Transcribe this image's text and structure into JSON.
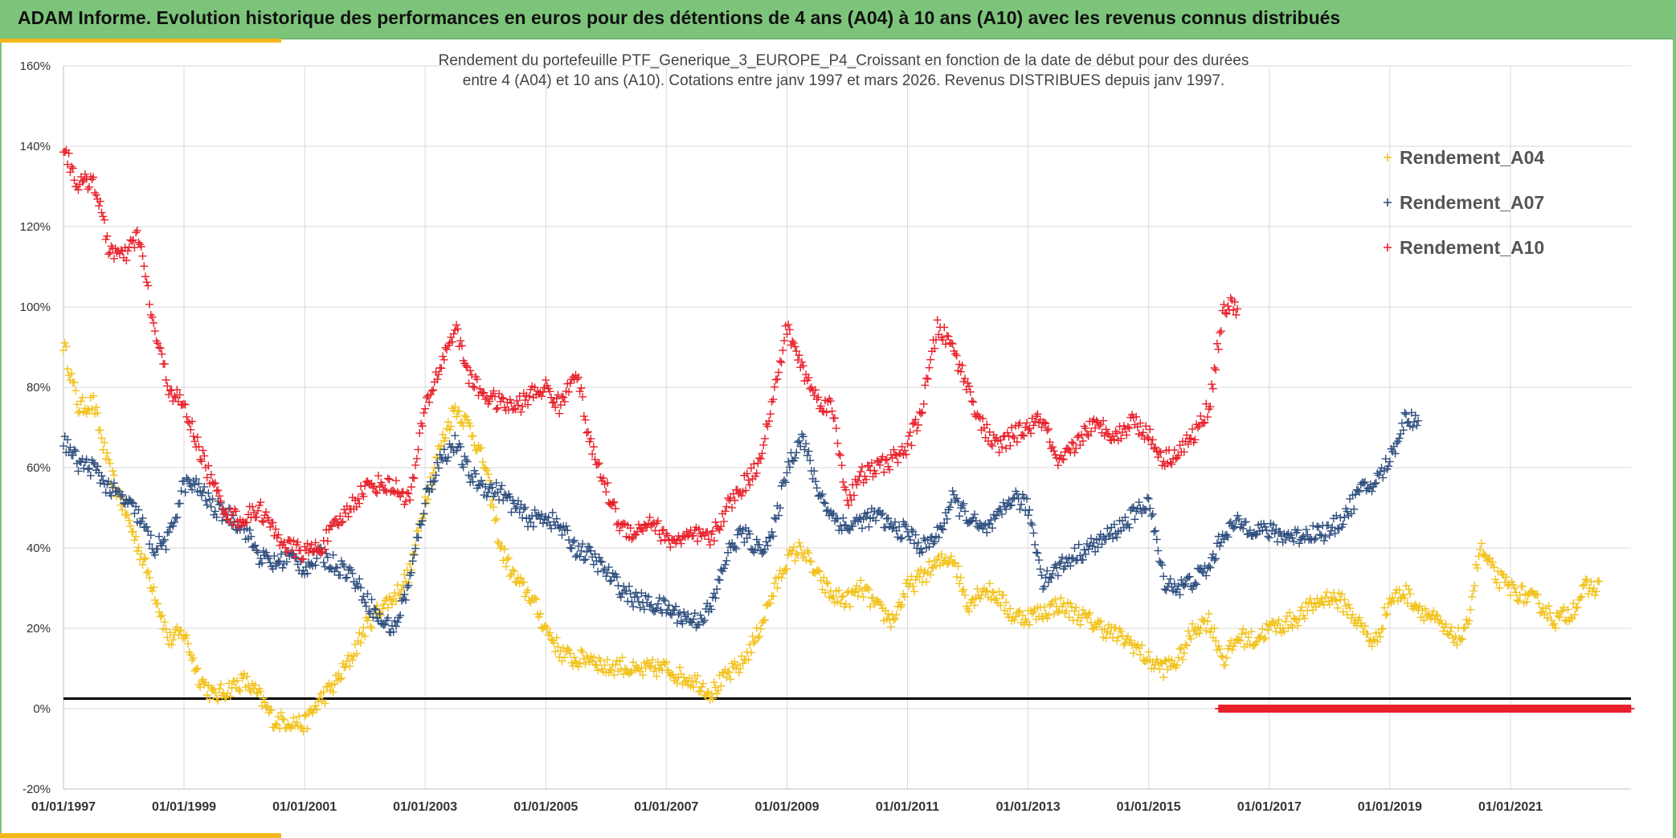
{
  "header": {
    "title": "ADAM Informe. Evolution historique des performances en euros pour des détentions de 4 ans (A04) à 10 ans (A10) avec les revenus connus distribués"
  },
  "colors": {
    "banner": "#7cc47a",
    "accent": "#f3b71a",
    "A04": "#f2c21b",
    "A07": "#2e4e7e",
    "A10": "#e8202a",
    "baseline": "#000000",
    "grid": "#d9d9d9"
  },
  "chart_data": {
    "type": "scatter",
    "title_lines": [
      "Rendement du portefeuille PTF_Generique_3_EUROPE_P4_Croissant en fonction de la date de début pour des durées",
      "entre 4 (A04) et 10 ans (A10). Cotations entre janv 1997 et mars 2026. Revenus DISTRIBUES depuis janv 1997."
    ],
    "x_type": "date",
    "xlim": [
      "1997-01-01",
      "2023-01-01"
    ],
    "x_ticks": [
      "01/01/1997",
      "01/01/1999",
      "01/01/2001",
      "01/01/2003",
      "01/01/2005",
      "01/01/2007",
      "01/01/2009",
      "01/01/2011",
      "01/01/2013",
      "01/01/2015",
      "01/01/2017",
      "01/01/2019",
      "01/01/2021"
    ],
    "ylim": [
      -20,
      160
    ],
    "y_ticks": [
      "-20%",
      "0%",
      "20%",
      "40%",
      "60%",
      "80%",
      "100%",
      "120%",
      "140%",
      "160%"
    ],
    "grid": true,
    "legend_position": "top-right",
    "marker": "plus",
    "baseline_y": 2.5,
    "series": [
      {
        "name": "Rendement_A04",
        "color": "#f2c21b",
        "x": [
          "1997-01-01",
          "1997-04-01",
          "1997-07-01",
          "1997-10-01",
          "1998-01-01",
          "1998-04-01",
          "1998-07-01",
          "1998-10-01",
          "1999-01-01",
          "1999-04-01",
          "1999-07-01",
          "1999-10-01",
          "2000-01-01",
          "2000-04-01",
          "2000-07-01",
          "2000-10-01",
          "2001-01-01",
          "2001-04-01",
          "2001-07-01",
          "2001-10-01",
          "2002-01-01",
          "2002-04-01",
          "2002-07-01",
          "2002-10-01",
          "2003-01-01",
          "2003-04-01",
          "2003-07-01",
          "2003-10-01",
          "2004-01-01",
          "2004-04-01",
          "2004-07-01",
          "2004-10-01",
          "2005-01-01",
          "2005-04-01",
          "2005-07-01",
          "2005-10-01",
          "2006-01-01",
          "2006-04-01",
          "2006-07-01",
          "2006-10-01",
          "2007-01-01",
          "2007-04-01",
          "2007-07-01",
          "2007-10-01",
          "2008-01-01",
          "2008-04-01",
          "2008-07-01",
          "2008-10-01",
          "2009-01-01",
          "2009-04-01",
          "2009-07-01",
          "2009-10-01",
          "2010-01-01",
          "2010-04-01",
          "2010-07-01",
          "2010-10-01",
          "2011-01-01",
          "2011-04-01",
          "2011-07-01",
          "2011-10-01",
          "2012-01-01",
          "2012-04-01",
          "2012-07-01",
          "2012-10-01",
          "2013-01-01",
          "2013-04-01",
          "2013-07-01",
          "2013-10-01",
          "2014-01-01",
          "2014-04-01",
          "2014-07-01",
          "2014-10-01",
          "2015-01-01",
          "2015-04-01",
          "2015-07-01",
          "2015-10-01",
          "2016-01-01",
          "2016-04-01",
          "2016-07-01",
          "2016-10-01",
          "2017-01-01",
          "2017-04-01",
          "2017-07-01",
          "2017-10-01",
          "2018-01-01",
          "2018-04-01",
          "2018-07-01",
          "2018-10-01",
          "2019-01-01",
          "2019-04-01",
          "2019-07-01",
          "2019-10-01",
          "2020-01-01",
          "2020-04-01",
          "2020-07-01",
          "2020-10-01",
          "2021-01-01",
          "2021-04-01",
          "2021-07-01",
          "2021-10-01",
          "2022-01-01",
          "2022-04-01"
        ],
        "y": [
          91,
          75,
          76,
          60,
          50,
          40,
          30,
          17,
          19,
          8,
          3,
          5,
          7,
          3,
          -3,
          -3,
          -4,
          2,
          6,
          12,
          20,
          25,
          28,
          34,
          52,
          65,
          75,
          70,
          60,
          40,
          32,
          28,
          20,
          14,
          12,
          13,
          10,
          11,
          9,
          10,
          10,
          8,
          7,
          4,
          8,
          11,
          18,
          28,
          37,
          40,
          33,
          28,
          27,
          30,
          25,
          22,
          30,
          33,
          36,
          38,
          26,
          30,
          28,
          23,
          23,
          24,
          26,
          24,
          22,
          20,
          18,
          16,
          12,
          10,
          12,
          20,
          22,
          12,
          18,
          17,
          20,
          21,
          23,
          26,
          28,
          26,
          21,
          16,
          27,
          29,
          25,
          22,
          18,
          18,
          40,
          33,
          30,
          28,
          26,
          22,
          24,
          30
        ]
      },
      {
        "name": "Rendement_A07",
        "color": "#2e4e7e",
        "x": [
          "1997-01-01",
          "1997-04-01",
          "1997-07-01",
          "1997-10-01",
          "1998-01-01",
          "1998-04-01",
          "1998-07-01",
          "1998-10-01",
          "1999-01-01",
          "1999-04-01",
          "1999-07-01",
          "1999-10-01",
          "2000-01-01",
          "2000-04-01",
          "2000-07-01",
          "2000-10-01",
          "2001-01-01",
          "2001-04-01",
          "2001-07-01",
          "2001-10-01",
          "2002-01-01",
          "2002-04-01",
          "2002-07-01",
          "2002-10-01",
          "2003-01-01",
          "2003-04-01",
          "2003-07-01",
          "2003-10-01",
          "2004-01-01",
          "2004-04-01",
          "2004-07-01",
          "2004-10-01",
          "2005-01-01",
          "2005-04-01",
          "2005-07-01",
          "2005-10-01",
          "2006-01-01",
          "2006-04-01",
          "2006-07-01",
          "2006-10-01",
          "2007-01-01",
          "2007-04-01",
          "2007-07-01",
          "2007-10-01",
          "2008-01-01",
          "2008-04-01",
          "2008-07-01",
          "2008-10-01",
          "2009-01-01",
          "2009-04-01",
          "2009-07-01",
          "2009-10-01",
          "2010-01-01",
          "2010-04-01",
          "2010-07-01",
          "2010-10-01",
          "2011-01-01",
          "2011-04-01",
          "2011-07-01",
          "2011-10-01",
          "2012-01-01",
          "2012-04-01",
          "2012-07-01",
          "2012-10-01",
          "2013-01-01",
          "2013-04-01",
          "2013-07-01",
          "2013-10-01",
          "2014-01-01",
          "2014-04-01",
          "2014-07-01",
          "2014-10-01",
          "2015-01-01",
          "2015-04-01",
          "2015-07-01",
          "2015-10-01",
          "2016-01-01",
          "2016-04-01",
          "2016-07-01",
          "2016-10-01",
          "2017-01-01",
          "2017-04-01",
          "2017-07-01",
          "2017-10-01",
          "2018-01-01",
          "2018-04-01",
          "2018-07-01",
          "2018-10-01",
          "2019-01-01",
          "2019-04-01"
        ],
        "y": [
          67,
          61,
          60,
          55,
          52,
          48,
          40,
          42,
          56,
          55,
          50,
          48,
          45,
          38,
          36,
          38,
          35,
          38,
          36,
          34,
          28,
          22,
          20,
          32,
          52,
          62,
          66,
          58,
          55,
          54,
          50,
          47,
          48,
          45,
          40,
          38,
          34,
          30,
          27,
          26,
          25,
          23,
          22,
          25,
          38,
          44,
          40,
          42,
          60,
          68,
          55,
          48,
          45,
          47,
          48,
          45,
          44,
          40,
          43,
          52,
          48,
          44,
          47,
          53,
          50,
          32,
          35,
          38,
          40,
          42,
          45,
          48,
          52,
          32,
          30,
          32,
          35,
          44,
          46,
          45,
          44,
          43,
          43,
          44,
          44,
          48,
          54,
          56,
          62,
          72
        ]
      },
      {
        "name": "Rendement_A10",
        "color": "#e8202a",
        "x": [
          "1997-01-01",
          "1997-04-01",
          "1997-07-01",
          "1997-10-01",
          "1998-01-01",
          "1998-04-01",
          "1998-07-01",
          "1998-10-01",
          "1999-01-01",
          "1999-04-01",
          "1999-07-01",
          "1999-10-01",
          "2000-01-01",
          "2000-04-01",
          "2000-07-01",
          "2000-10-01",
          "2001-01-01",
          "2001-04-01",
          "2001-07-01",
          "2001-10-01",
          "2002-01-01",
          "2002-04-01",
          "2002-07-01",
          "2002-10-01",
          "2003-01-01",
          "2003-04-01",
          "2003-07-01",
          "2003-10-01",
          "2004-01-01",
          "2004-04-01",
          "2004-07-01",
          "2004-10-01",
          "2005-01-01",
          "2005-04-01",
          "2005-07-01",
          "2005-10-01",
          "2006-01-01",
          "2006-04-01",
          "2006-07-01",
          "2006-10-01",
          "2007-01-01",
          "2007-04-01",
          "2007-07-01",
          "2007-10-01",
          "2008-01-01",
          "2008-04-01",
          "2008-07-01",
          "2008-10-01",
          "2009-01-01",
          "2009-04-01",
          "2009-07-01",
          "2009-10-01",
          "2010-01-01",
          "2010-04-01",
          "2010-07-01",
          "2010-10-01",
          "2011-01-01",
          "2011-04-01",
          "2011-07-01",
          "2011-10-01",
          "2012-01-01",
          "2012-04-01",
          "2012-07-01",
          "2012-10-01",
          "2013-01-01",
          "2013-04-01",
          "2013-07-01",
          "2013-10-01",
          "2014-01-01",
          "2014-04-01",
          "2014-07-01",
          "2014-10-01",
          "2015-01-01",
          "2015-04-01",
          "2015-07-01",
          "2015-10-01",
          "2016-01-01",
          "2016-04-01"
        ],
        "y": [
          140,
          130,
          132,
          115,
          112,
          118,
          95,
          80,
          75,
          65,
          55,
          48,
          47,
          50,
          44,
          40,
          39,
          40,
          45,
          50,
          55,
          56,
          55,
          52,
          75,
          85,
          95,
          82,
          78,
          76,
          75,
          78,
          80,
          75,
          85,
          65,
          55,
          45,
          44,
          47,
          42,
          42,
          43,
          42,
          50,
          55,
          60,
          75,
          95,
          85,
          77,
          75,
          52,
          58,
          60,
          62,
          65,
          75,
          95,
          90,
          80,
          70,
          65,
          68,
          70,
          72,
          60,
          65,
          70,
          70,
          68,
          72,
          68,
          62,
          64,
          68,
          75,
          100
        ]
      },
      {
        "name": "Rendement_A10 (0%)",
        "color": "#e8202a",
        "x_range": [
          "2016-03-01",
          "2023-01-01"
        ],
        "y_constant": 0
      }
    ]
  }
}
